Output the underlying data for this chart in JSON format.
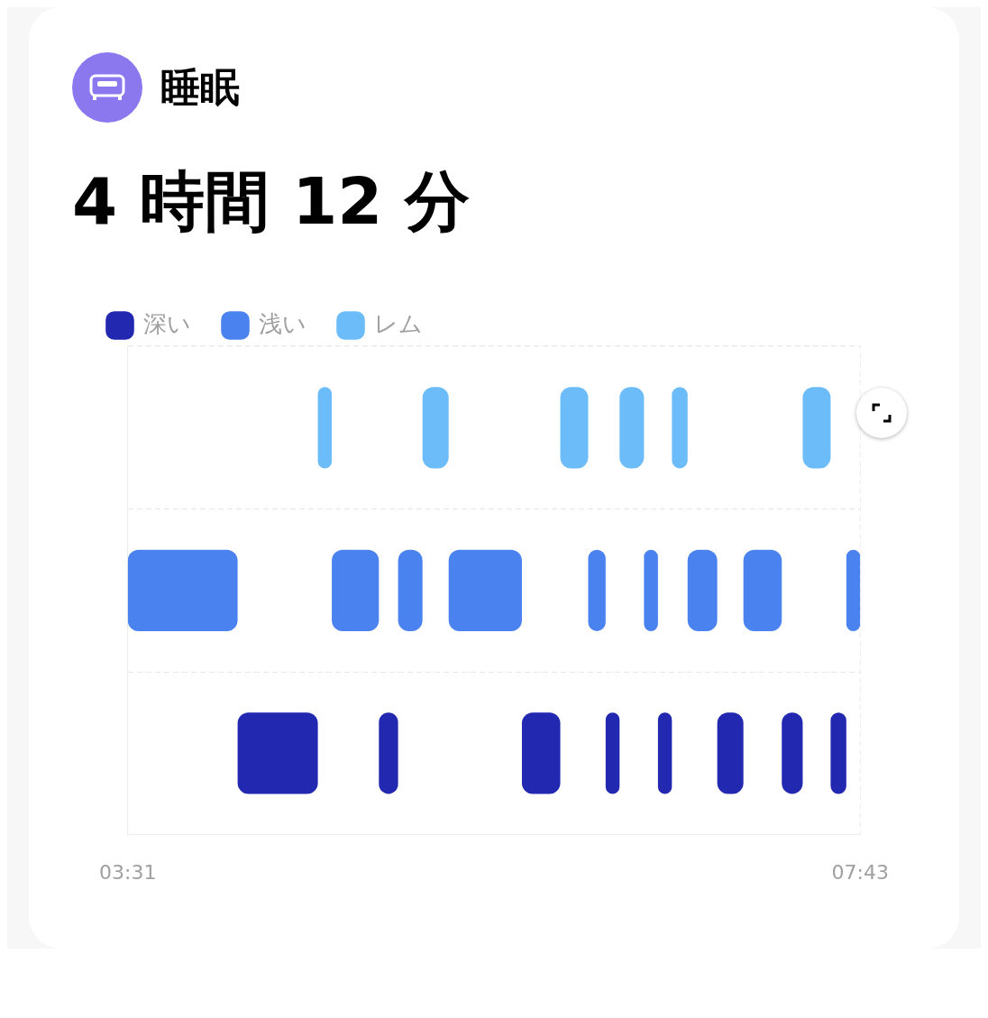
{
  "chart_data": {
    "type": "bar",
    "orientation": "horizontal",
    "title": "睡眠",
    "subtitle": "4 時間 12 分",
    "categories": [
      null,
      null,
      null
    ],
    "series": [
      {
        "name": "深い",
        "color": "#2328b0",
        "values": [
          null,
          null,
          0.46
        ],
        "base": [
          null,
          null,
          4.15
        ]
      },
      {
        "name": "浅い",
        "color": "#4a82f0",
        "values": [
          null,
          0.63,
          null
        ],
        "base": [
          null,
          3.52,
          null
        ]
      },
      {
        "name": "レム",
        "color": "#6bbcf9",
        "values": [
          0.08,
          null,
          null
        ],
        "base": [
          4.61,
          null,
          null
        ]
      },
      {
        "color": "#4a82f0",
        "values": [
          null,
          0.27,
          null
        ],
        "base": [
          null,
          4.69,
          null
        ]
      },
      {
        "color": "#2328b0",
        "values": [
          null,
          null,
          0.11
        ],
        "base": [
          null,
          null,
          4.96
        ]
      },
      {
        "color": "#4a82f0",
        "values": [
          null,
          0.14,
          null
        ],
        "base": [
          null,
          5.07,
          null
        ]
      },
      {
        "color": "#6bbcf9",
        "values": [
          0.15,
          null,
          null
        ],
        "base": [
          5.21,
          null,
          null
        ]
      },
      {
        "color": "#4a82f0",
        "values": [
          null,
          0.42,
          null
        ],
        "base": [
          null,
          5.36,
          null
        ]
      },
      {
        "color": "#2328b0",
        "values": [
          null,
          null,
          0.22
        ],
        "base": [
          null,
          null,
          5.78
        ]
      },
      {
        "color": "#6bbcf9",
        "values": [
          0.16,
          null,
          null
        ],
        "base": [
          6.0,
          null,
          null
        ]
      },
      {
        "color": "#4a82f0",
        "values": [
          null,
          0.1,
          null
        ],
        "base": [
          null,
          6.16,
          null
        ]
      },
      {
        "color": "#2328b0",
        "values": [
          null,
          null,
          0.08
        ],
        "base": [
          null,
          null,
          6.26
        ]
      },
      {
        "color": "#6bbcf9",
        "values": [
          0.14,
          null,
          null
        ],
        "base": [
          6.34,
          null,
          null
        ]
      },
      {
        "color": "#4a82f0",
        "values": [
          null,
          0.08,
          null
        ],
        "base": [
          null,
          6.48,
          null
        ]
      },
      {
        "color": "#2328b0",
        "values": [
          null,
          null,
          0.08
        ],
        "base": [
          null,
          null,
          6.56
        ]
      },
      {
        "color": "#6bbcf9",
        "values": [
          0.09,
          null,
          null
        ],
        "base": [
          6.64,
          null,
          null
        ]
      },
      {
        "color": "#4a82f0",
        "values": [
          null,
          0.17,
          null
        ],
        "base": [
          null,
          6.73,
          null
        ]
      },
      {
        "color": "#2328b0",
        "values": [
          null,
          null,
          0.15
        ],
        "base": [
          null,
          null,
          6.9
        ]
      },
      {
        "color": "#4a82f0",
        "values": [
          null,
          0.22,
          null
        ],
        "base": [
          null,
          7.05,
          null
        ]
      },
      {
        "color": "#2328b0",
        "values": [
          null,
          null,
          0.12
        ],
        "base": [
          null,
          null,
          7.27
        ]
      },
      {
        "color": "#6bbcf9",
        "values": [
          0.16,
          null,
          null
        ],
        "base": [
          7.39,
          null,
          null
        ]
      },
      {
        "color": "#2328b0",
        "values": [
          null,
          null,
          0.09
        ],
        "base": [
          null,
          null,
          7.55
        ]
      },
      {
        "color": "#4a82f0",
        "values": [
          null,
          0.08,
          null
        ],
        "base": [
          null,
          7.64,
          null
        ]
      }
    ],
    "xlim": [
      3.52,
      7.72
    ],
    "xticks": [
      {
        "value": 3.52,
        "label": "03:31"
      },
      {
        "value": 7.72,
        "label": "07:43"
      }
    ],
    "tick_labels": "x",
    "grid": "y",
    "legend": "top left"
  }
}
